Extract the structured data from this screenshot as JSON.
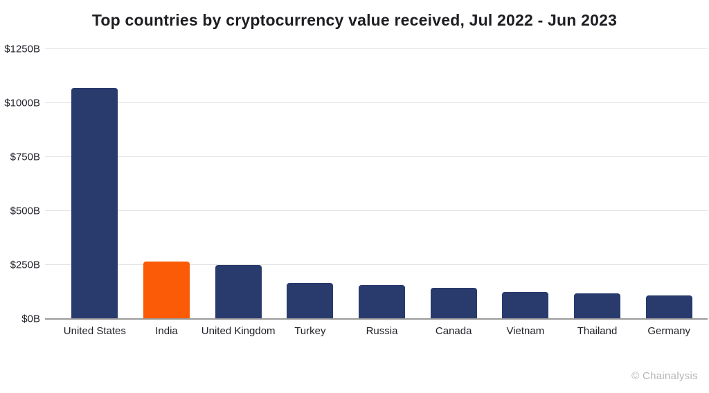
{
  "title": "Top countries by cryptocurrency value received, Jul 2022 - Jun 2023",
  "watermark": "© Chainalysis",
  "chart_data": {
    "type": "bar",
    "categories": [
      "United States",
      "India",
      "United Kingdom",
      "Turkey",
      "Russia",
      "Canada",
      "Vietnam",
      "Thailand",
      "Germany"
    ],
    "values": [
      1070,
      267,
      250,
      167,
      156,
      143,
      125,
      120,
      110
    ],
    "unit": "billions USD",
    "title": "Top countries by cryptocurrency value received, Jul 2022 - Jun 2023",
    "xlabel": "",
    "ylabel": "",
    "ylim": [
      0,
      1250
    ],
    "ytick_values": [
      0,
      250,
      500,
      750,
      1000,
      1250
    ],
    "ytick_labels": [
      "$0B",
      "$250B",
      "$500B",
      "$750B",
      "$1000B",
      "$1250B"
    ],
    "grid": true,
    "legend": "none",
    "bar_color": "#293A6D",
    "highlight_category": "India",
    "highlight_color": "#FB5A07",
    "gridline_color": "#e2e2e2",
    "baseline_color": "#9a9a9a"
  }
}
